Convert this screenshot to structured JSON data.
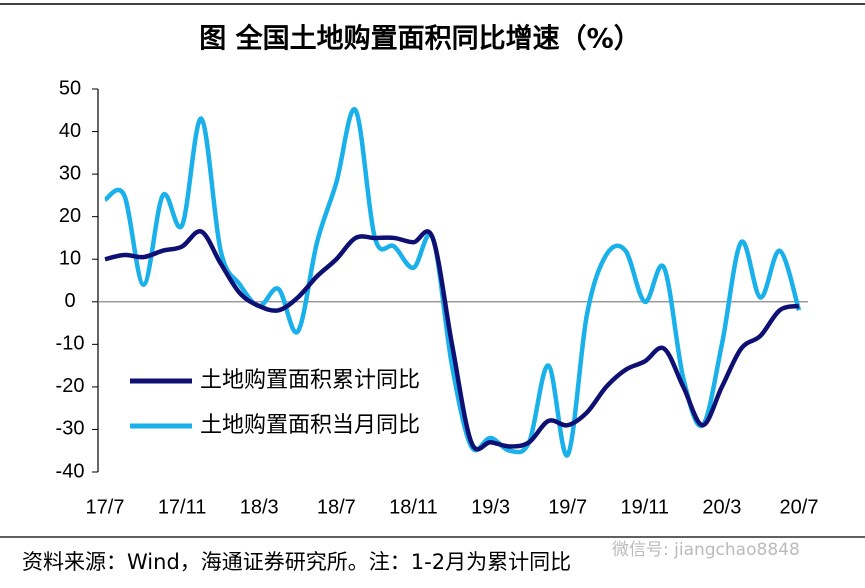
{
  "chart_data": {
    "type": "line",
    "title": "图  全国土地购置面积同比增速（%）",
    "source": "资料来源：Wind，海通证券研究所。注：1-2月为累计同比",
    "watermark": "微信号: jiangchao8848",
    "categories": [
      "17/7",
      null,
      null,
      null,
      "17/11",
      null,
      null,
      null,
      "18/3",
      null,
      null,
      null,
      "18/7",
      null,
      null,
      null,
      "18/11",
      null,
      null,
      null,
      "19/3",
      null,
      null,
      null,
      "19/7",
      null,
      null,
      null,
      "19/11",
      null,
      null,
      null,
      "20/3",
      null,
      null,
      null,
      "20/7"
    ],
    "series": [
      {
        "name": "土地购置面积累计同比",
        "color": "#0f1074",
        "values": [
          10,
          11,
          10.5,
          12,
          13,
          16.5,
          9,
          2,
          -1,
          -2,
          1,
          6,
          10,
          15,
          15,
          15,
          14,
          15,
          -10,
          -33,
          -33,
          -34,
          -33,
          -28,
          -29,
          -26,
          -20,
          -16,
          -14,
          -11,
          -20,
          -29,
          -20,
          -11,
          -8,
          -2,
          -1
        ]
      },
      {
        "name": "土地购置面积当月同比",
        "color": "#1ab0ea",
        "values": [
          24,
          25,
          4,
          25,
          18,
          43,
          12,
          4,
          -1,
          3,
          -7,
          14,
          28,
          45,
          15,
          13,
          8,
          15,
          -15,
          -34,
          -32,
          -35,
          -33,
          -15,
          -36,
          -3,
          11,
          12,
          0,
          8,
          -18,
          -29,
          -10,
          14,
          1,
          12,
          -2
        ]
      }
    ],
    "ylim": [
      -40,
      50
    ],
    "yticks": [
      -40,
      -30,
      -20,
      -10,
      0,
      10,
      20,
      30,
      40,
      50
    ],
    "legend": "lower-left"
  }
}
